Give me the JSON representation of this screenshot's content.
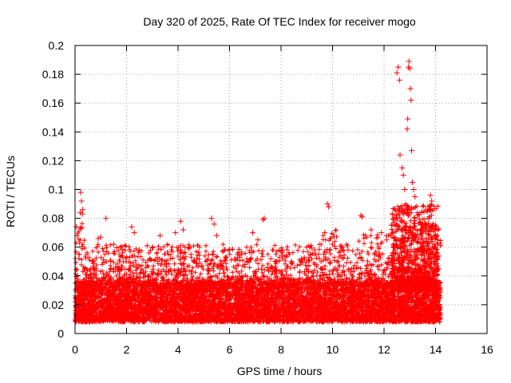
{
  "chart_data": {
    "type": "scatter",
    "title": "Day 320 of 2025, Rate Of TEC Index for receiver mogo",
    "xlabel": "GPS time / hours",
    "ylabel": "ROTI / TECUs",
    "xlim": [
      0,
      16
    ],
    "ylim": [
      0,
      0.2
    ],
    "x_ticks": [
      0,
      2,
      4,
      6,
      8,
      10,
      12,
      14,
      16
    ],
    "y_ticks": [
      0,
      0.02,
      0.04,
      0.06,
      0.08,
      0.1,
      0.12,
      0.14,
      0.16,
      0.18,
      0.2
    ],
    "x_tick_labels": [
      "0",
      "2",
      "4",
      "6",
      "8",
      "10",
      "12",
      "14",
      "16"
    ],
    "y_tick_labels": [
      "0",
      "0.02",
      "0.04",
      "0.06",
      "0.08",
      "0.1",
      "0.12",
      "0.14",
      "0.16",
      "0.18",
      "0.2"
    ],
    "grid": true,
    "marker": "+",
    "color": "#ff0000",
    "series": [
      {
        "name": "ROTI",
        "data_range_x": [
          0,
          14.2
        ],
        "baseline_band": [
          0.008,
          0.035
        ],
        "points": [
          [
            0.05,
            0.074
          ],
          [
            0.08,
            0.068
          ],
          [
            0.15,
            0.055
          ],
          [
            0.2,
            0.084
          ],
          [
            0.22,
            0.098
          ],
          [
            0.25,
            0.092
          ],
          [
            0.28,
            0.083
          ],
          [
            0.3,
            0.086
          ],
          [
            0.9,
            0.066
          ],
          [
            1.0,
            0.067
          ],
          [
            1.2,
            0.08
          ],
          [
            1.5,
            0.062
          ],
          [
            2.2,
            0.074
          ],
          [
            2.3,
            0.07
          ],
          [
            2.5,
            0.058
          ],
          [
            2.8,
            0.061
          ],
          [
            3.0,
            0.06
          ],
          [
            3.3,
            0.068
          ],
          [
            3.9,
            0.07
          ],
          [
            4.1,
            0.078
          ],
          [
            4.2,
            0.072
          ],
          [
            4.5,
            0.055
          ],
          [
            5.3,
            0.08
          ],
          [
            5.4,
            0.076
          ],
          [
            5.5,
            0.068
          ],
          [
            5.8,
            0.058
          ],
          [
            6.2,
            0.052
          ],
          [
            6.9,
            0.07
          ],
          [
            7.1,
            0.065
          ],
          [
            7.3,
            0.079
          ],
          [
            7.35,
            0.08
          ],
          [
            7.6,
            0.052
          ],
          [
            8.4,
            0.05
          ],
          [
            8.8,
            0.052
          ],
          [
            9.3,
            0.058
          ],
          [
            9.7,
            0.07
          ],
          [
            9.8,
            0.09
          ],
          [
            9.85,
            0.088
          ],
          [
            10.0,
            0.062
          ],
          [
            10.4,
            0.06
          ],
          [
            10.6,
            0.058
          ],
          [
            11.1,
            0.082
          ],
          [
            11.15,
            0.081
          ],
          [
            11.5,
            0.072
          ],
          [
            11.9,
            0.07
          ],
          [
            12.1,
            0.065
          ],
          [
            12.3,
            0.075
          ],
          [
            12.5,
            0.181
          ],
          [
            12.55,
            0.185
          ],
          [
            12.6,
            0.176
          ],
          [
            12.62,
            0.124
          ],
          [
            12.7,
            0.115
          ],
          [
            12.75,
            0.11
          ],
          [
            12.8,
            0.1
          ],
          [
            12.85,
            0.089
          ],
          [
            12.9,
            0.142
          ],
          [
            12.92,
            0.149
          ],
          [
            12.95,
            0.185
          ],
          [
            12.97,
            0.189
          ],
          [
            13.0,
            0.184
          ],
          [
            13.02,
            0.17
          ],
          [
            13.05,
            0.162
          ],
          [
            13.07,
            0.127
          ],
          [
            13.1,
            0.105
          ],
          [
            13.15,
            0.1
          ],
          [
            13.2,
            0.095
          ],
          [
            13.3,
            0.082
          ],
          [
            13.5,
            0.076
          ],
          [
            13.7,
            0.088
          ],
          [
            13.8,
            0.096
          ],
          [
            13.85,
            0.092
          ],
          [
            14.0,
            0.06
          ],
          [
            14.05,
            0.052
          ],
          [
            14.1,
            0.045
          ]
        ]
      }
    ]
  }
}
